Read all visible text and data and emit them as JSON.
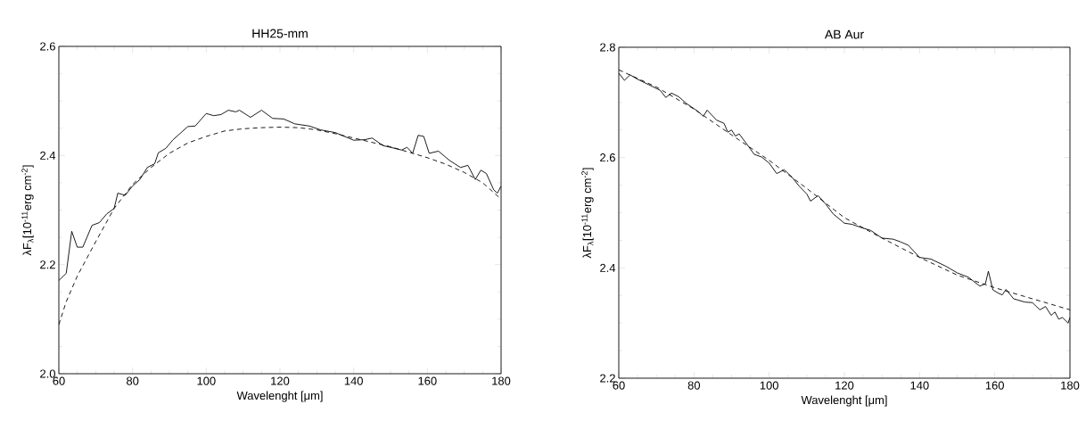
{
  "chart_data": [
    {
      "type": "line",
      "title": "HH25-mm",
      "xlabel": "Wavelenght [μm]",
      "ylabel": "λF$_{λ}$[10$^{-11}$erg cm$^{-2}$]",
      "xlim": [
        60,
        180
      ],
      "xticks": [
        60,
        80,
        100,
        120,
        140,
        160,
        180
      ],
      "ylim": [
        2.0,
        2.6
      ],
      "yticks": [
        {
          "value": 2.0,
          "label": "2.0"
        },
        2.2,
        2.4,
        2.6
      ],
      "grid": false,
      "legend": false,
      "marker": "none",
      "series": [
        {
          "color": "#000000",
          "line_style": "solid",
          "x": [
            60,
            62,
            63.5,
            65,
            66.5,
            69,
            71,
            73,
            75,
            76,
            78,
            80,
            82,
            84,
            86,
            87,
            89,
            91,
            95,
            97,
            100,
            102,
            104,
            106,
            108,
            109,
            112,
            115,
            118,
            121,
            124,
            128,
            131,
            135,
            140,
            143,
            145,
            148,
            150,
            153,
            154.5,
            156,
            157.5,
            159,
            160.5,
            163,
            166,
            169,
            171,
            173,
            174.5,
            176,
            178,
            179,
            180
          ],
          "values": [
            2.171,
            2.184,
            2.261,
            2.232,
            2.232,
            2.272,
            2.277,
            2.293,
            2.303,
            2.331,
            2.327,
            2.344,
            2.356,
            2.378,
            2.385,
            2.405,
            2.413,
            2.429,
            2.453,
            2.454,
            2.477,
            2.473,
            2.475,
            2.483,
            2.48,
            2.483,
            2.47,
            2.483,
            2.468,
            2.467,
            2.458,
            2.454,
            2.447,
            2.442,
            2.428,
            2.429,
            2.432,
            2.418,
            2.415,
            2.41,
            2.415,
            2.404,
            2.437,
            2.435,
            2.404,
            2.408,
            2.391,
            2.378,
            2.382,
            2.356,
            2.373,
            2.367,
            2.337,
            2.331,
            2.344
          ]
        },
        {
          "color": "#000000",
          "line_style": "dashed",
          "x": [
            60,
            62,
            65,
            70,
            75,
            80,
            85,
            90,
            95,
            100,
            105,
            110,
            115,
            120,
            125,
            130,
            135,
            140,
            145,
            150,
            155,
            160,
            165,
            170,
            175,
            180
          ],
          "values": [
            2.09,
            2.132,
            2.179,
            2.242,
            2.303,
            2.347,
            2.378,
            2.404,
            2.423,
            2.435,
            2.445,
            2.449,
            2.451,
            2.452,
            2.451,
            2.447,
            2.44,
            2.432,
            2.424,
            2.416,
            2.406,
            2.396,
            2.384,
            2.369,
            2.35,
            2.32
          ]
        }
      ]
    },
    {
      "type": "line",
      "title": "AB Aur",
      "xlabel": "Wavelenght [μm]",
      "ylabel": "λF$_{λ}$[10$^{-11}$erg cm$^{-2}$]",
      "xlim": [
        60,
        180
      ],
      "xticks": [
        60,
        80,
        100,
        120,
        140,
        160,
        180
      ],
      "ylim": [
        2.2,
        2.8
      ],
      "yticks": [
        2.2,
        2.4,
        2.6,
        2.8
      ],
      "grid": false,
      "legend": false,
      "marker": "none",
      "series": [
        {
          "color": "#000000",
          "line_style": "solid",
          "x": [
            60,
            61.5,
            63,
            65,
            68,
            71,
            72.5,
            74,
            76,
            78,
            81,
            82.5,
            83.5,
            86,
            88,
            89,
            90,
            91,
            92,
            94,
            96,
            98,
            100,
            102,
            104,
            106,
            108,
            110,
            111,
            113,
            115,
            117,
            120,
            122,
            125,
            127,
            130,
            133,
            135,
            137,
            140,
            143,
            147,
            150,
            153,
            156,
            157.5,
            158.3,
            159.5,
            161,
            162,
            163,
            165,
            168,
            170,
            172,
            173.5,
            175,
            176,
            177,
            178,
            179.5,
            180
          ],
          "values": [
            2.753,
            2.74,
            2.75,
            2.742,
            2.732,
            2.722,
            2.709,
            2.717,
            2.71,
            2.698,
            2.684,
            2.675,
            2.686,
            2.668,
            2.662,
            2.646,
            2.65,
            2.639,
            2.643,
            2.625,
            2.606,
            2.601,
            2.59,
            2.571,
            2.578,
            2.565,
            2.548,
            2.534,
            2.521,
            2.531,
            2.516,
            2.498,
            2.481,
            2.479,
            2.472,
            2.468,
            2.454,
            2.452,
            2.447,
            2.441,
            2.419,
            2.416,
            2.403,
            2.391,
            2.383,
            2.367,
            2.371,
            2.394,
            2.36,
            2.354,
            2.351,
            2.361,
            2.344,
            2.338,
            2.337,
            2.324,
            2.33,
            2.314,
            2.32,
            2.307,
            2.31,
            2.3,
            2.31
          ]
        },
        {
          "color": "#000000",
          "line_style": "dashed",
          "x": [
            60,
            70,
            80,
            90,
            100,
            110,
            120,
            130,
            140,
            150,
            160,
            170,
            180
          ],
          "values": [
            2.759,
            2.728,
            2.688,
            2.641,
            2.595,
            2.544,
            2.491,
            2.454,
            2.419,
            2.387,
            2.364,
            2.344,
            2.324
          ]
        }
      ]
    }
  ]
}
